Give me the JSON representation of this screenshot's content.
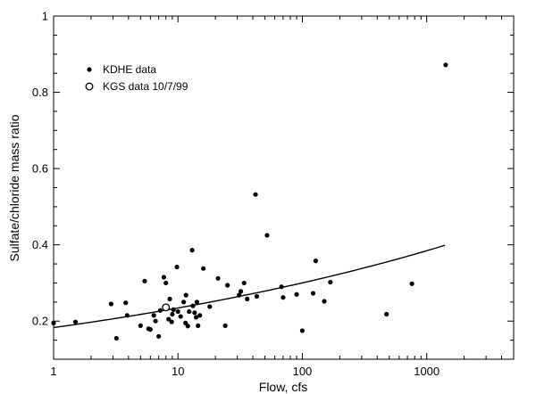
{
  "chart_data": {
    "type": "scatter",
    "title": "",
    "xlabel": "Flow, cfs",
    "ylabel": "Sulfate/chloride mass ratio",
    "xscale": "log",
    "xlim": [
      1,
      5000
    ],
    "ylim": [
      0.1,
      1.0
    ],
    "x_ticks": [
      1,
      10,
      100,
      1000
    ],
    "x_tick_labels": [
      "1",
      "10",
      "100",
      "1000"
    ],
    "y_ticks": [
      0.2,
      0.4,
      0.6,
      0.8,
      1.0
    ],
    "y_tick_labels": [
      "0.2",
      "0.4",
      "0.6",
      "0.8",
      "1"
    ],
    "grid": false,
    "legend_position": "top-left",
    "series": [
      {
        "name": "KDHE data",
        "marker": "filled-circle",
        "points": [
          [
            1.0,
            0.195
          ],
          [
            1.5,
            0.198
          ],
          [
            2.9,
            0.245
          ],
          [
            3.2,
            0.155
          ],
          [
            3.8,
            0.248
          ],
          [
            3.9,
            0.215
          ],
          [
            5.0,
            0.188
          ],
          [
            5.4,
            0.305
          ],
          [
            5.8,
            0.18
          ],
          [
            6.0,
            0.178
          ],
          [
            6.4,
            0.215
          ],
          [
            6.6,
            0.2
          ],
          [
            7.0,
            0.16
          ],
          [
            7.2,
            0.228
          ],
          [
            7.7,
            0.315
          ],
          [
            8.0,
            0.3
          ],
          [
            8.1,
            0.232
          ],
          [
            8.4,
            0.205
          ],
          [
            8.6,
            0.258
          ],
          [
            8.9,
            0.198
          ],
          [
            9.0,
            0.218
          ],
          [
            9.2,
            0.23
          ],
          [
            9.8,
            0.342
          ],
          [
            10.0,
            0.225
          ],
          [
            10.5,
            0.212
          ],
          [
            11.1,
            0.25
          ],
          [
            11.5,
            0.195
          ],
          [
            11.6,
            0.268
          ],
          [
            12.0,
            0.187
          ],
          [
            12.3,
            0.225
          ],
          [
            13.0,
            0.386
          ],
          [
            13.2,
            0.24
          ],
          [
            13.6,
            0.222
          ],
          [
            14.0,
            0.21
          ],
          [
            14.2,
            0.25
          ],
          [
            14.5,
            0.188
          ],
          [
            15.0,
            0.215
          ],
          [
            16.0,
            0.338
          ],
          [
            18.0,
            0.238
          ],
          [
            21.0,
            0.312
          ],
          [
            24.0,
            0.188
          ],
          [
            25.0,
            0.294
          ],
          [
            31.0,
            0.268
          ],
          [
            32.0,
            0.278
          ],
          [
            34.0,
            0.3
          ],
          [
            36.0,
            0.258
          ],
          [
            42.0,
            0.532
          ],
          [
            43.0,
            0.265
          ],
          [
            52.0,
            0.425
          ],
          [
            68.0,
            0.29
          ],
          [
            70.0,
            0.262
          ],
          [
            90.0,
            0.27
          ],
          [
            100.0,
            0.175
          ],
          [
            122.0,
            0.273
          ],
          [
            128.0,
            0.358
          ],
          [
            150.0,
            0.252
          ],
          [
            168.0,
            0.302
          ],
          [
            475.0,
            0.218
          ],
          [
            760.0,
            0.298
          ],
          [
            1420.0,
            0.872
          ]
        ]
      },
      {
        "name": "KGS data 10/7/99",
        "marker": "open-circle",
        "points": [
          [
            8.0,
            0.236
          ]
        ]
      }
    ],
    "trend_line": {
      "type": "power-law fit",
      "a": 0.183,
      "b": 0.1075,
      "x_range": [
        1,
        1400
      ]
    }
  }
}
